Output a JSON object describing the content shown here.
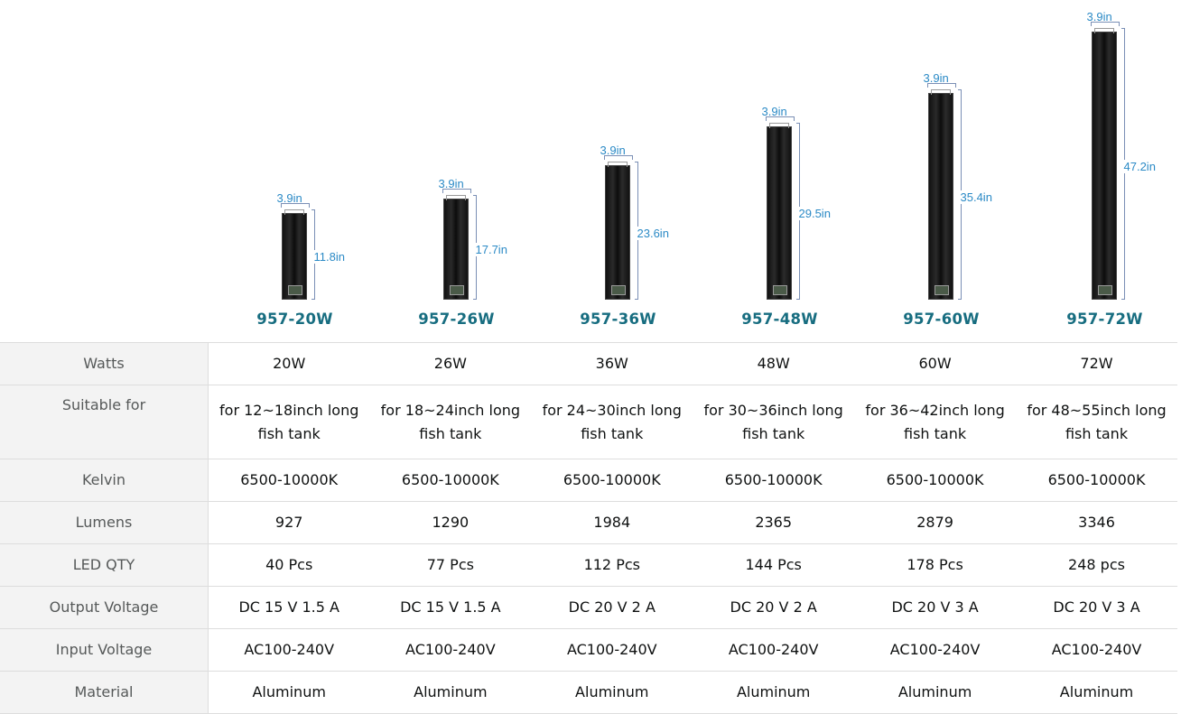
{
  "products": [
    {
      "name": "957-20W",
      "width": "3.9in",
      "length": "11.8in"
    },
    {
      "name": "957-26W",
      "width": "3.9in",
      "length": "17.7in"
    },
    {
      "name": "957-36W",
      "width": "3.9in",
      "length": "23.6in"
    },
    {
      "name": "957-48W",
      "width": "3.9in",
      "length": "29.5in"
    },
    {
      "name": "957-60W",
      "width": "3.9in",
      "length": "35.4in"
    },
    {
      "name": "957-72W",
      "width": "3.9in",
      "length": "47.2in"
    }
  ],
  "rows": [
    {
      "label": "Watts",
      "values": [
        "20W",
        "26W",
        "36W",
        "48W",
        "60W",
        "72W"
      ]
    },
    {
      "label": "Suitable for",
      "values": [
        "for 12~18inch long fish tank",
        "for 18~24inch long fish tank",
        "for 24~30inch long fish tank",
        "for 30~36inch long fish tank",
        "for 36~42inch long fish tank",
        "for 48~55inch long fish tank"
      ]
    },
    {
      "label": "Kelvin",
      "values": [
        "6500-10000K",
        "6500-10000K",
        "6500-10000K",
        "6500-10000K",
        "6500-10000K",
        "6500-10000K"
      ]
    },
    {
      "label": "Lumens",
      "values": [
        "927",
        "1290",
        "1984",
        "2365",
        "2879",
        "3346"
      ]
    },
    {
      "label": "LED QTY",
      "values": [
        "40 Pcs",
        "77 Pcs",
        "112 Pcs",
        "144 Pcs",
        "178 Pcs",
        "248 pcs"
      ]
    },
    {
      "label": "Output Voltage",
      "values": [
        "DC 15 V 1.5 A",
        "DC 15 V 1.5 A",
        "DC 20 V 2 A",
        "DC 20 V 2 A",
        "DC 20 V 3 A",
        "DC 20 V 3 A"
      ]
    },
    {
      "label": "Input Voltage",
      "values": [
        "AC100-240V",
        "AC100-240V",
        "AC100-240V",
        "AC100-240V",
        "AC100-240V",
        "AC100-240V"
      ]
    },
    {
      "label": "Material",
      "values": [
        "Aluminum",
        "Aluminum",
        "Aluminum",
        "Aluminum",
        "Aluminum",
        "Aluminum"
      ]
    }
  ],
  "colors": {
    "model_name": "#176d80",
    "dimension": "#2b8ac6",
    "label_bg": "#f3f3f3"
  }
}
